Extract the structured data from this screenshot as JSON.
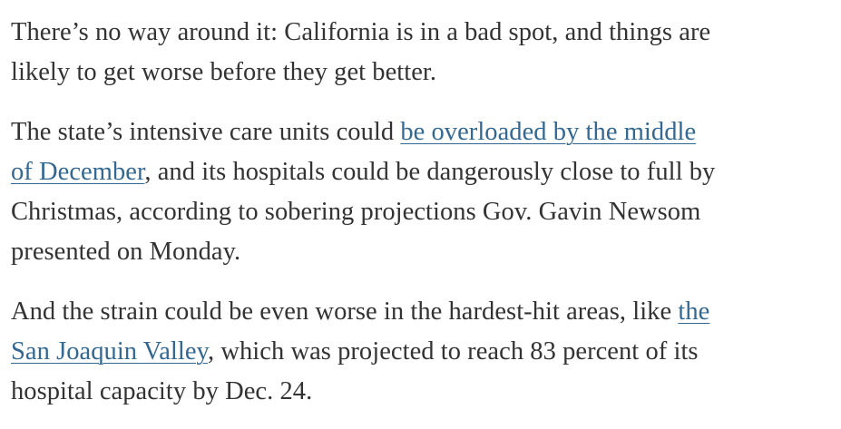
{
  "article": {
    "paragraph_1": {
      "line_1": "There’s no way around it: California is in a bad spot, and things are",
      "line_2": "likely to get worse before they get better."
    },
    "paragraph_2": {
      "line_1_text": "The state’s intensive care units could ",
      "link_1_part_1": "be overloaded by the middle",
      "link_1_part_2": "of December",
      "line_2_text": ", and its hospitals could be dangerously close to full by",
      "line_3": "Christmas, according to sobering projections Gov. Gavin Newsom",
      "line_4": "presented on Monday."
    },
    "paragraph_3": {
      "line_1_text": "And the strain could be even worse in the hardest-hit areas, like ",
      "link_2_part_1": "the",
      "link_2_part_2": "San Joaquin Valley",
      "line_2_text": ", which was projected to reach 83 percent of its",
      "line_3": "hospital capacity by Dec. 24."
    }
  },
  "colors": {
    "text": "#333333",
    "link": "#326891",
    "background": "#ffffff"
  }
}
